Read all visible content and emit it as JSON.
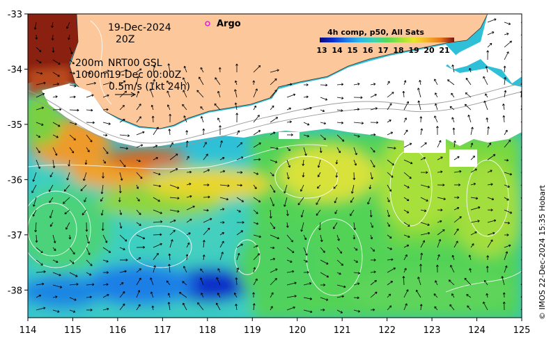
{
  "map": {
    "region_lon_range": [
      114,
      125
    ],
    "region_lat_range": [
      -38.5,
      -33
    ],
    "x_ticks": [
      "114",
      "115",
      "116",
      "117",
      "118",
      "119",
      "120",
      "121",
      "122",
      "123",
      "124",
      "125"
    ],
    "y_ticks": [
      "-33",
      "-34",
      "-35",
      "-36",
      "-37",
      "-38"
    ],
    "date_line": "19-Dec-2024",
    "time_line": "20Z",
    "contour_label_1": "200m",
    "contour_label_2": "1000m",
    "nrt_label": "NRT00 GSL",
    "nrt_date": "19-Dec 00:00Z",
    "speed_scale_label": "0.5m/s (1kt 24h)",
    "legend_marker_label": "Argo",
    "colorbar_title": "4h comp, p50, All Sats",
    "colorbar_ticks": [
      "13",
      "14",
      "15",
      "16",
      "17",
      "18",
      "19",
      "20",
      "21"
    ],
    "credit": "© IMOS 22-Dec-2024 15:35 Hobart",
    "land_color": "#fcc89b",
    "argo_marker_color": "#e020e0",
    "colormap": [
      "#08087a",
      "#0c2fd0",
      "#1d7be8",
      "#2bb8e6",
      "#3fd2b4",
      "#55d85a",
      "#9be23b",
      "#e8e62a",
      "#f5b22a",
      "#e7761c",
      "#c0461a",
      "#7a1410"
    ]
  }
}
